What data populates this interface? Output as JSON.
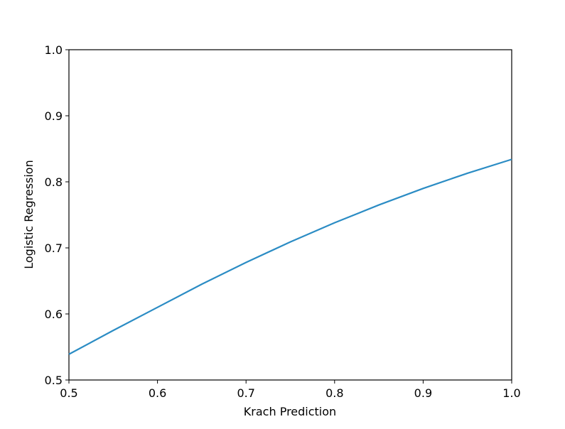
{
  "chart_data": {
    "type": "line",
    "xlabel": "Krach Prediction",
    "ylabel": "Logistic Regression",
    "x": [
      0.5,
      0.55,
      0.6,
      0.65,
      0.7,
      0.75,
      0.8,
      0.85,
      0.9,
      0.95,
      1.0
    ],
    "series": [
      {
        "color": "#2b8cc4",
        "values": [
          0.539,
          0.575,
          0.61,
          0.645,
          0.678,
          0.709,
          0.738,
          0.765,
          0.79,
          0.813,
          0.834
        ]
      }
    ],
    "xlim": [
      0.5,
      1.0
    ],
    "ylim": [
      0.5,
      1.0
    ],
    "xticks": [
      0.5,
      0.6,
      0.7,
      0.8,
      0.9,
      {
        "value": 1.0,
        "label": "1.0"
      }
    ],
    "yticks": [
      0.5,
      0.6,
      0.7,
      0.8,
      0.9,
      {
        "value": 1.0,
        "label": "1.0"
      }
    ],
    "grid": false
  }
}
